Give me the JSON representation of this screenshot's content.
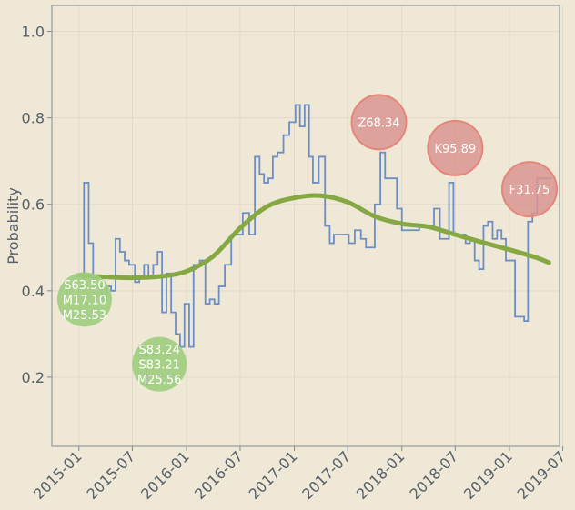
{
  "chart_data": {
    "type": "line",
    "title": "",
    "xlabel": "",
    "ylabel": "Probability",
    "xlim": [
      "2014-10-01",
      "2019-06-20"
    ],
    "ylim": [
      0.04,
      1.06
    ],
    "y_ticks": [
      0.2,
      0.4,
      0.6,
      0.8,
      1.0
    ],
    "y_tick_labels": [
      "0.2",
      "0.4",
      "0.6",
      "0.8",
      "1.0"
    ],
    "x_ticks": [
      "2015-01-01",
      "2015-07-01",
      "2016-01-01",
      "2016-07-01",
      "2017-01-01",
      "2017-07-01",
      "2018-01-01",
      "2018-07-01",
      "2019-01-01",
      "2019-07-01"
    ],
    "x_tick_labels": [
      "2015-01",
      "2015-07",
      "2016-01",
      "2016-07",
      "2017-01",
      "2017-07",
      "2018-01",
      "2018-07",
      "2019-01",
      "2019-07"
    ],
    "grid": true,
    "colors": {
      "background": "#efe8d6",
      "step_line": "#6b8fc4",
      "trend_line": "#86a843",
      "bubble_green": "#9fcd7e",
      "bubble_red": "#d99590",
      "bubble_red_edge": "#e5867b",
      "axis": "#7d8a92"
    },
    "series": [
      {
        "style": "step",
        "x": [
          "2015-01-01",
          "2015-01-18",
          "2015-02-03",
          "2015-02-18",
          "2015-03-20",
          "2015-04-05",
          "2015-04-20",
          "2015-05-05",
          "2015-05-20",
          "2015-06-05",
          "2015-06-20",
          "2015-07-10",
          "2015-07-25",
          "2015-08-10",
          "2015-08-25",
          "2015-09-10",
          "2015-09-25",
          "2015-10-10",
          "2015-10-25",
          "2015-11-10",
          "2015-11-25",
          "2015-12-10",
          "2015-12-25",
          "2016-01-10",
          "2016-01-25",
          "2016-02-15",
          "2016-03-05",
          "2016-03-20",
          "2016-04-05",
          "2016-04-20",
          "2016-05-10",
          "2016-06-01",
          "2016-06-20",
          "2016-07-10",
          "2016-08-01",
          "2016-08-20",
          "2016-09-05",
          "2016-09-20",
          "2016-10-05",
          "2016-10-20",
          "2016-11-05",
          "2016-11-25",
          "2016-12-15",
          "2017-01-05",
          "2017-01-20",
          "2017-02-05",
          "2017-02-20",
          "2017-03-05",
          "2017-03-25",
          "2017-04-15",
          "2017-05-01",
          "2017-05-15",
          "2017-06-01",
          "2017-06-15",
          "2017-07-05",
          "2017-07-25",
          "2017-08-15",
          "2017-09-01",
          "2017-09-15",
          "2017-10-01",
          "2017-10-20",
          "2017-11-05",
          "2017-11-25",
          "2017-12-15",
          "2018-01-01",
          "2018-01-20",
          "2018-02-10",
          "2018-03-01",
          "2018-03-25",
          "2018-04-20",
          "2018-05-10",
          "2018-05-25",
          "2018-06-10",
          "2018-06-25",
          "2018-07-20",
          "2018-08-05",
          "2018-08-20",
          "2018-09-05",
          "2018-09-20",
          "2018-10-05",
          "2018-10-20",
          "2018-11-05",
          "2018-11-20",
          "2018-12-05",
          "2018-12-20",
          "2019-01-05",
          "2019-01-20",
          "2019-02-05",
          "2019-02-20",
          "2019-03-05",
          "2019-03-20",
          "2019-04-05",
          "2019-04-20",
          "2019-05-05"
        ],
        "y": [
          0.41,
          0.65,
          0.51,
          0.41,
          0.38,
          0.41,
          0.4,
          0.52,
          0.49,
          0.47,
          0.46,
          0.42,
          0.43,
          0.46,
          0.43,
          0.46,
          0.49,
          0.35,
          0.44,
          0.35,
          0.3,
          0.27,
          0.37,
          0.27,
          0.46,
          0.47,
          0.37,
          0.38,
          0.37,
          0.41,
          0.46,
          0.53,
          0.53,
          0.58,
          0.53,
          0.71,
          0.67,
          0.65,
          0.66,
          0.71,
          0.72,
          0.76,
          0.79,
          0.83,
          0.78,
          0.83,
          0.71,
          0.65,
          0.71,
          0.55,
          0.51,
          0.53,
          0.53,
          0.53,
          0.51,
          0.54,
          0.52,
          0.5,
          0.5,
          0.6,
          0.72,
          0.66,
          0.66,
          0.59,
          0.54,
          0.54,
          0.54,
          0.55,
          0.55,
          0.59,
          0.52,
          0.52,
          0.65,
          0.53,
          0.53,
          0.51,
          0.52,
          0.47,
          0.45,
          0.55,
          0.56,
          0.52,
          0.54,
          0.52,
          0.47,
          0.47,
          0.34,
          0.34,
          0.33,
          0.56,
          0.58,
          0.66,
          0.66,
          0.66
        ]
      },
      {
        "style": "smooth",
        "x": [
          "2015-01-01",
          "2015-04-01",
          "2015-07-01",
          "2015-10-01",
          "2016-01-01",
          "2016-04-01",
          "2016-07-01",
          "2016-10-01",
          "2017-01-01",
          "2017-04-01",
          "2017-07-01",
          "2017-10-01",
          "2018-01-01",
          "2018-04-01",
          "2018-07-01",
          "2018-10-01",
          "2019-01-01",
          "2019-04-01",
          "2019-05-15"
        ],
        "y": [
          0.435,
          0.432,
          0.43,
          0.433,
          0.445,
          0.48,
          0.545,
          0.595,
          0.615,
          0.62,
          0.605,
          0.572,
          0.555,
          0.548,
          0.53,
          0.512,
          0.495,
          0.477,
          0.465
        ]
      }
    ],
    "annotations": [
      {
        "x": "2015-01-20",
        "y": 0.38,
        "color": "green",
        "lines": [
          "S63.50",
          "M17.10",
          "M25.53"
        ]
      },
      {
        "x": "2015-10-01",
        "y": 0.23,
        "color": "green",
        "lines": [
          "S83.24",
          "S83.21",
          "M25.56"
        ]
      },
      {
        "x": "2017-10-15",
        "y": 0.79,
        "color": "red",
        "lines": [
          "Z68.34"
        ]
      },
      {
        "x": "2018-07-01",
        "y": 0.73,
        "color": "red",
        "lines": [
          "K95.89"
        ]
      },
      {
        "x": "2019-03-10",
        "y": 0.635,
        "color": "red",
        "lines": [
          "F31.75"
        ]
      }
    ]
  }
}
